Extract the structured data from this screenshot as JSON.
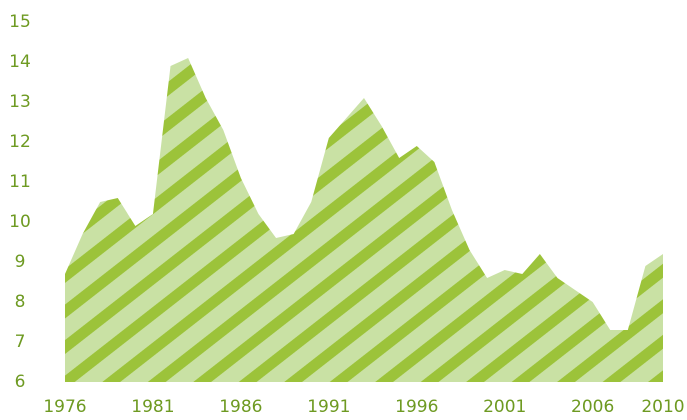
{
  "chart_data": {
    "type": "area",
    "x": [
      1976,
      1977,
      1978,
      1979,
      1980,
      1981,
      1982,
      1983,
      1984,
      1985,
      1986,
      1987,
      1988,
      1989,
      1990,
      1991,
      1992,
      1993,
      1994,
      1995,
      1996,
      1997,
      1998,
      1999,
      2000,
      2001,
      2002,
      2003,
      2004,
      2005,
      2006,
      2007,
      2008,
      2009,
      2010
    ],
    "values": [
      8.7,
      9.7,
      10.5,
      10.6,
      9.9,
      10.2,
      13.9,
      14.1,
      13.1,
      12.3,
      11.1,
      10.2,
      9.6,
      9.7,
      10.5,
      12.1,
      12.6,
      13.1,
      12.4,
      11.6,
      11.9,
      11.5,
      10.3,
      9.3,
      8.6,
      8.8,
      8.7,
      9.2,
      8.6,
      8.3,
      8.0,
      7.3,
      7.3,
      8.9,
      9.2
    ],
    "xlim": [
      1976,
      2010
    ],
    "xticks": [
      1976,
      1981,
      1986,
      1991,
      1996,
      2001,
      2006,
      2010
    ],
    "ylim": [
      6,
      15
    ],
    "yticks": [
      6,
      7,
      8,
      9,
      10,
      11,
      12,
      13,
      14,
      15
    ],
    "color": "#9cc33a",
    "fill_color": "#c9e1a4",
    "text_color": "#6e9a22",
    "grid": false
  }
}
